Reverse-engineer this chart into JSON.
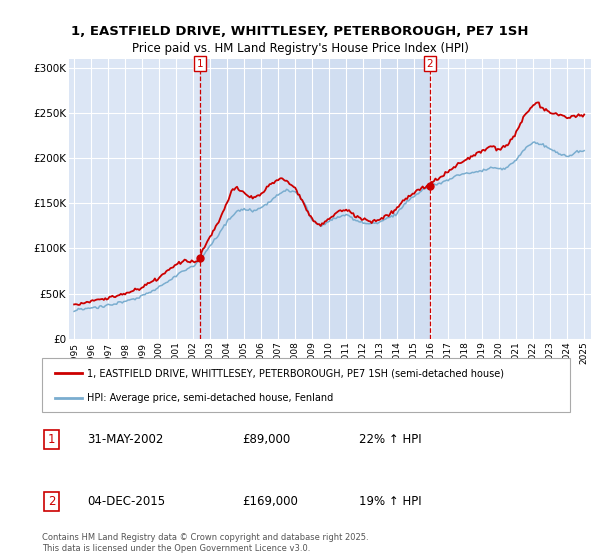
{
  "title": "1, EASTFIELD DRIVE, WHITTLESEY, PETERBOROUGH, PE7 1SH",
  "subtitle": "Price paid vs. HM Land Registry's House Price Index (HPI)",
  "background_color": "#ffffff",
  "plot_bg_color": "#dce6f5",
  "shade_color": "#dce6f5",
  "grid_color": "#ffffff",
  "ylim": [
    0,
    310000
  ],
  "yticks": [
    0,
    50000,
    100000,
    150000,
    200000,
    250000,
    300000
  ],
  "ytick_labels": [
    "£0",
    "£50K",
    "£100K",
    "£150K",
    "£200K",
    "£250K",
    "£300K"
  ],
  "purchase1_date": "31-MAY-2002",
  "purchase1_price": 89000,
  "purchase1_hpi_pct": "22%",
  "purchase1_year": 2002.42,
  "purchase2_date": "04-DEC-2015",
  "purchase2_price": 169000,
  "purchase2_hpi_pct": "19%",
  "purchase2_year": 2015.92,
  "red_line_color": "#cc0000",
  "blue_line_color": "#7aadcf",
  "marker_color": "#cc0000",
  "vline_color": "#cc0000",
  "legend_label_red": "1, EASTFIELD DRIVE, WHITTLESEY, PETERBOROUGH, PE7 1SH (semi-detached house)",
  "legend_label_blue": "HPI: Average price, semi-detached house, Fenland",
  "footer_text": "Contains HM Land Registry data © Crown copyright and database right 2025.\nThis data is licensed under the Open Government Licence v3.0."
}
